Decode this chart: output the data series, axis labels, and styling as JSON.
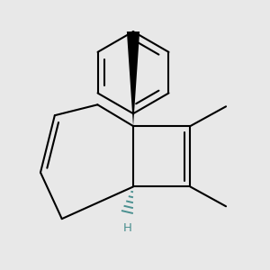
{
  "background_color": "#e8e8e8",
  "line_color": "#000000",
  "line_width": 1.5,
  "dash_color": "#4a9090",
  "H_color": "#4a9090",
  "figsize": [
    3.0,
    3.0
  ],
  "dpi": 100
}
